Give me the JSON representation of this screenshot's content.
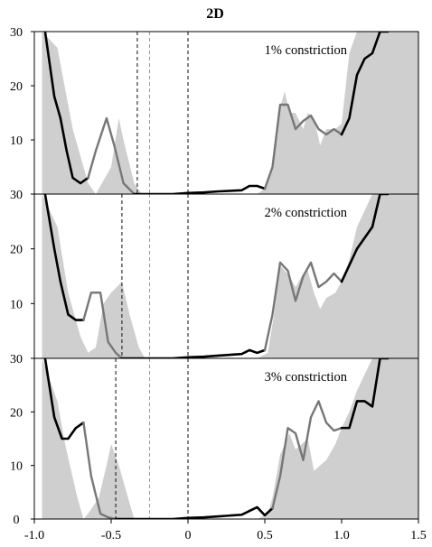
{
  "title": "2D",
  "chart_data": {
    "type": "area",
    "title": "2D",
    "x_ticks": [
      "-1.0",
      "-0.5",
      "0",
      "0.5",
      "1.0",
      "1.5"
    ],
    "x_range": [
      -1.0,
      1.5
    ],
    "panels": [
      {
        "annotation": "1% constriction",
        "ylim": [
          0,
          30
        ],
        "y_ticks": [
          "30",
          "20",
          "10"
        ],
        "vlines": [
          {
            "x": -0.33,
            "style": "dashed-dark"
          },
          {
            "x": -0.25,
            "style": "dashed-light"
          },
          {
            "x": 0.0,
            "style": "dashed-dark"
          }
        ],
        "reference_area": {
          "x": [
            -0.95,
            -0.85,
            -0.75,
            -0.65,
            -0.6,
            -0.5,
            -0.45,
            -0.42,
            -0.35,
            -0.3,
            0.0,
            0.45,
            0.5,
            0.55,
            0.6,
            0.63,
            0.66,
            0.7,
            0.75,
            0.78,
            0.82,
            0.86,
            0.9,
            0.96,
            1.0,
            1.05,
            1.1,
            1.2,
            1.3,
            1.5
          ],
          "y": [
            30,
            27,
            12,
            2,
            0,
            5,
            14,
            10,
            2,
            0,
            0,
            0,
            1,
            5,
            16,
            19,
            15,
            15,
            12,
            15,
            14,
            9,
            12,
            12,
            13,
            26,
            30,
            30,
            30,
            30
          ]
        },
        "series": [
          {
            "color": "#000000",
            "x": [
              -0.93,
              -0.87,
              -0.83,
              -0.79,
              -0.75,
              -0.7,
              -0.65
            ],
            "y": [
              30,
              18,
              14,
              8,
              3,
              2,
              3
            ]
          },
          {
            "color": "#777777",
            "x": [
              -0.65,
              -0.6,
              -0.53,
              -0.48,
              -0.42,
              -0.35
            ],
            "y": [
              3,
              8,
              14,
              9,
              2,
              0
            ]
          },
          {
            "color": "#000000",
            "x": [
              -0.35,
              -0.25,
              -0.1,
              0,
              0.1,
              0.2,
              0.35,
              0.4,
              0.45,
              0.5
            ],
            "y": [
              0,
              0,
              0,
              0.2,
              0.3,
              0.5,
              0.7,
              1.5,
              1.5,
              1
            ]
          },
          {
            "color": "#777777",
            "x": [
              0.5,
              0.55,
              0.6,
              0.65,
              0.7,
              0.75,
              0.8,
              0.85,
              0.9,
              0.95,
              1.0
            ],
            "y": [
              1,
              5,
              16.5,
              16.5,
              12,
              13.5,
              14.5,
              12,
              11,
              12,
              11
            ]
          },
          {
            "color": "#000000",
            "x": [
              1.0,
              1.05,
              1.1,
              1.15,
              1.2,
              1.25,
              1.3
            ],
            "y": [
              11,
              14,
              22,
              25,
              26,
              30,
              30
            ]
          }
        ]
      },
      {
        "annotation": "2% constriction",
        "ylim": [
          0,
          30
        ],
        "y_ticks": [
          "30",
          "20",
          "10"
        ],
        "vlines": [
          {
            "x": -0.43,
            "style": "dashed-dark"
          },
          {
            "x": -0.25,
            "style": "dashed-light"
          },
          {
            "x": 0.0,
            "style": "dashed-dark"
          }
        ],
        "reference_area": {
          "x": [
            -0.95,
            -0.85,
            -0.78,
            -0.7,
            -0.65,
            -0.6,
            -0.55,
            -0.5,
            -0.43,
            -0.38,
            -0.32,
            -0.28,
            0.0,
            0.45,
            0.52,
            0.56,
            0.6,
            0.66,
            0.7,
            0.74,
            0.78,
            0.82,
            0.86,
            0.9,
            0.96,
            1.0,
            1.05,
            1.1,
            1.2,
            1.3,
            1.5
          ],
          "y": [
            30,
            24,
            12,
            4,
            1,
            2,
            10,
            12,
            14,
            8,
            2,
            0,
            0,
            0,
            1,
            8,
            17,
            15,
            13,
            15,
            16,
            12,
            9,
            11,
            12,
            14,
            18,
            24,
            30,
            30,
            30
          ]
        },
        "series": [
          {
            "color": "#000000",
            "x": [
              -0.93,
              -0.87,
              -0.83,
              -0.78,
              -0.73,
              -0.68
            ],
            "y": [
              30,
              20,
              14,
              8,
              7,
              7
            ]
          },
          {
            "color": "#777777",
            "x": [
              -0.68,
              -0.63,
              -0.57,
              -0.52,
              -0.47,
              -0.43
            ],
            "y": [
              7,
              12,
              12,
              3,
              1,
              0
            ]
          },
          {
            "color": "#000000",
            "x": [
              -0.43,
              -0.25,
              -0.1,
              0,
              0.1,
              0.2,
              0.35,
              0.4,
              0.45,
              0.5
            ],
            "y": [
              0,
              0,
              0,
              0.2,
              0.3,
              0.5,
              0.8,
              1.5,
              1,
              1.5
            ]
          },
          {
            "color": "#777777",
            "x": [
              0.5,
              0.55,
              0.6,
              0.65,
              0.7,
              0.75,
              0.8,
              0.85,
              0.9,
              0.95,
              1.0
            ],
            "y": [
              1.5,
              8,
              17.5,
              16,
              10.5,
              15,
              17.5,
              13,
              14,
              15.5,
              14
            ]
          },
          {
            "color": "#000000",
            "x": [
              1.0,
              1.05,
              1.1,
              1.15,
              1.2,
              1.25,
              1.3
            ],
            "y": [
              14,
              17,
              20,
              22,
              24,
              30,
              30
            ]
          }
        ]
      },
      {
        "annotation": "3% constriction",
        "ylim": [
          0,
          30
        ],
        "y_ticks": [
          "30",
          "20",
          "10",
          "0"
        ],
        "vlines": [
          {
            "x": -0.47,
            "style": "dashed-dark"
          },
          {
            "x": -0.25,
            "style": "dashed-light"
          },
          {
            "x": 0.0,
            "style": "dashed-dark"
          }
        ],
        "reference_area": {
          "x": [
            -0.95,
            -0.85,
            -0.8,
            -0.72,
            -0.68,
            -0.65,
            -0.58,
            -0.53,
            -0.5,
            -0.45,
            -0.4,
            -0.35,
            -0.3,
            0.0,
            0.45,
            0.52,
            0.55,
            0.6,
            0.66,
            0.7,
            0.74,
            0.78,
            0.82,
            0.86,
            0.9,
            0.96,
            1.0,
            1.05,
            1.1,
            1.2,
            1.3,
            1.5
          ],
          "y": [
            30,
            22,
            14,
            4,
            0,
            1,
            4,
            10,
            14,
            10,
            5,
            0,
            0,
            0,
            0,
            1,
            4,
            12,
            16,
            13,
            14,
            15,
            9,
            10,
            11,
            14,
            17,
            20,
            24,
            30,
            30,
            30
          ]
        },
        "series": [
          {
            "color": "#000000",
            "x": [
              -0.93,
              -0.87,
              -0.82,
              -0.78,
              -0.73,
              -0.68
            ],
            "y": [
              30,
              19,
              15,
              15,
              17,
              18
            ]
          },
          {
            "color": "#777777",
            "x": [
              -0.68,
              -0.63,
              -0.57,
              -0.52,
              -0.47
            ],
            "y": [
              18,
              8,
              1,
              0.3,
              0
            ]
          },
          {
            "color": "#000000",
            "x": [
              -0.47,
              -0.25,
              -0.1,
              0,
              0.1,
              0.2,
              0.35,
              0.4,
              0.45,
              0.5,
              0.55
            ],
            "y": [
              0,
              0,
              0,
              0.2,
              0.3,
              0.5,
              0.8,
              1.5,
              2.2,
              0.7,
              2
            ]
          },
          {
            "color": "#777777",
            "x": [
              0.55,
              0.6,
              0.65,
              0.7,
              0.75,
              0.8,
              0.85,
              0.9,
              0.95,
              1.0
            ],
            "y": [
              2,
              8,
              17,
              16,
              11,
              19,
              22,
              18,
              16.5,
              17
            ]
          },
          {
            "color": "#000000",
            "x": [
              1.0,
              1.05,
              1.1,
              1.15,
              1.2,
              1.25,
              1.3
            ],
            "y": [
              17,
              17,
              22,
              22,
              21,
              30,
              30
            ]
          }
        ]
      }
    ]
  }
}
